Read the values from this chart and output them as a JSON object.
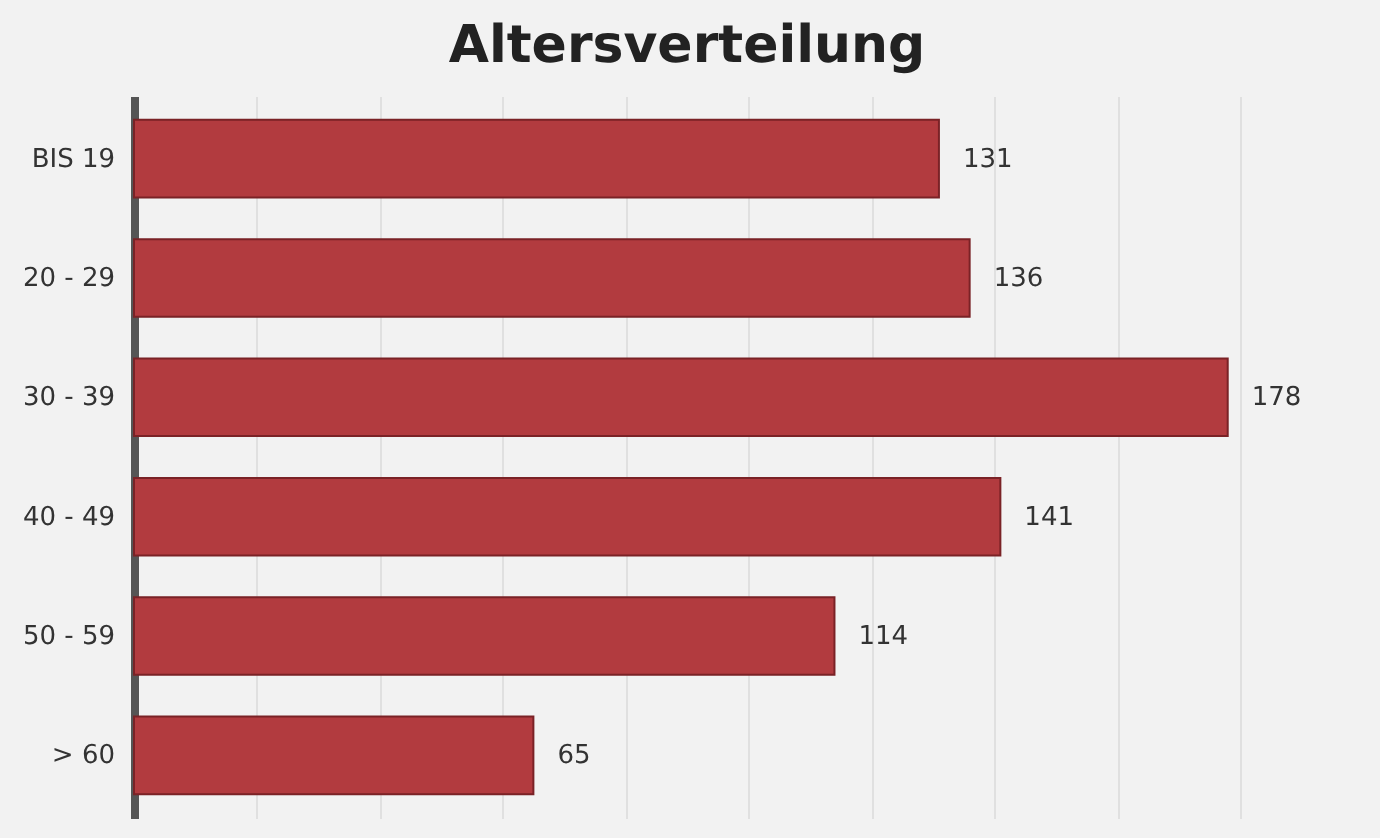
{
  "chart_data": {
    "type": "bar",
    "orientation": "horizontal",
    "title": "Altersverteilung",
    "categories": [
      "BIS 19",
      "20 - 29",
      "30 - 39",
      "40 - 49",
      "50 - 59",
      "> 60"
    ],
    "values": [
      131,
      136,
      178,
      141,
      114,
      65
    ],
    "color": "#b23b3f",
    "data_labels": true,
    "xlim": [
      0,
      180
    ],
    "xticks": [
      {
        "value": 0,
        "label": null
      },
      {
        "value": 20,
        "label": null
      },
      {
        "value": 40,
        "label": null
      },
      {
        "value": 60,
        "label": null
      },
      {
        "value": 80,
        "label": null
      },
      {
        "value": 100,
        "label": null
      },
      {
        "value": 120,
        "label": null
      },
      {
        "value": 140,
        "label": null
      },
      {
        "value": 160,
        "label": null
      },
      {
        "value": 180,
        "label": null
      }
    ],
    "grid": "x",
    "tick_labels": "y"
  }
}
